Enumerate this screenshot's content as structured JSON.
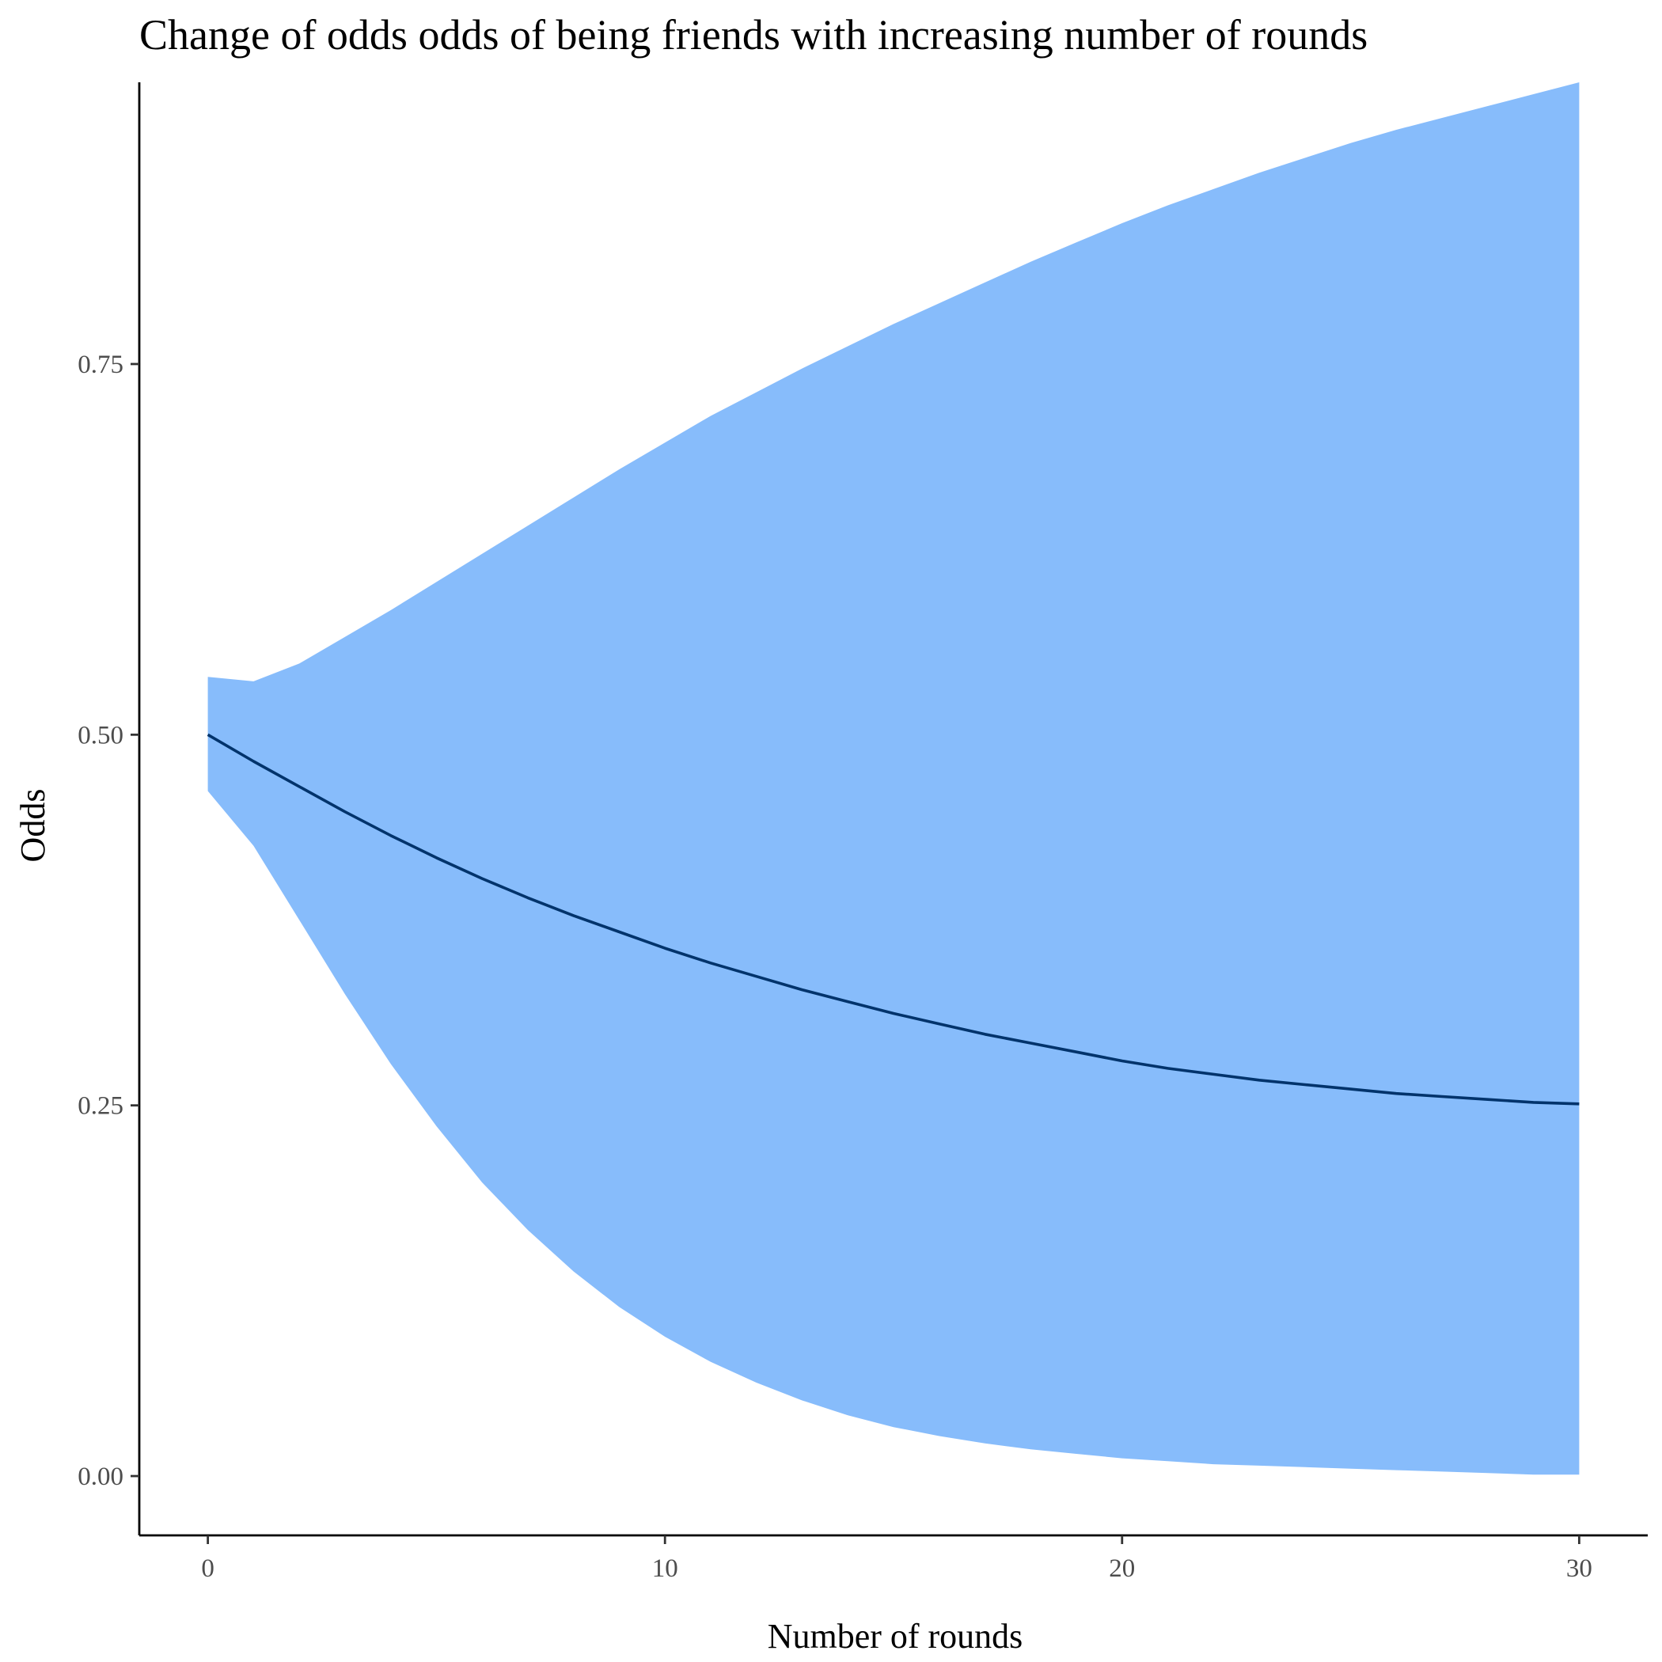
{
  "chart_data": {
    "type": "area",
    "title": "Change of odds odds of being friends with increasing number of rounds",
    "xlabel": "Number of rounds",
    "ylabel": "Odds",
    "xlim": [
      -1.5,
      31.5
    ],
    "ylim": [
      -0.04,
      0.94
    ],
    "x_ticks": [
      0,
      10,
      20,
      30
    ],
    "x_tick_labels": [
      "0",
      "10",
      "20",
      "30"
    ],
    "y_ticks": [
      0,
      0.25,
      0.5,
      0.75
    ],
    "y_tick_labels": [
      "0.00",
      "0.25",
      "0.50",
      "0.75"
    ],
    "grid": false,
    "legend": "none",
    "colors": {
      "ribbon": "#87bcfb",
      "line": "#00336b"
    },
    "series": [
      {
        "kind": "ribbon",
        "x": [
          0,
          1,
          2,
          3,
          4,
          5,
          6,
          7,
          8,
          9,
          10,
          11,
          12,
          13,
          14,
          15,
          16,
          17,
          18,
          19,
          20,
          21,
          22,
          23,
          24,
          25,
          26,
          27,
          28,
          29,
          30
        ],
        "lower": [
          0.462,
          0.425,
          0.375,
          0.325,
          0.278,
          0.236,
          0.198,
          0.166,
          0.138,
          0.114,
          0.094,
          0.077,
          0.063,
          0.051,
          0.041,
          0.033,
          0.027,
          0.022,
          0.018,
          0.015,
          0.012,
          0.01,
          0.008,
          0.007,
          0.006,
          0.005,
          0.004,
          0.003,
          0.002,
          0.001,
          0.001
        ],
        "upper": [
          0.539,
          0.536,
          0.548,
          0.566,
          0.584,
          0.603,
          0.622,
          0.641,
          0.66,
          0.679,
          0.697,
          0.715,
          0.731,
          0.747,
          0.762,
          0.777,
          0.791,
          0.805,
          0.819,
          0.832,
          0.845,
          0.857,
          0.868,
          0.879,
          0.889,
          0.899,
          0.908,
          0.916,
          0.924,
          0.932,
          0.94
        ]
      },
      {
        "kind": "line",
        "x": [
          0,
          1,
          2,
          3,
          4,
          5,
          6,
          7,
          8,
          9,
          10,
          11,
          12,
          13,
          14,
          15,
          16,
          17,
          18,
          19,
          20,
          21,
          22,
          23,
          24,
          25,
          26,
          27,
          28,
          29,
          30
        ],
        "y": [
          0.5,
          0.482,
          0.465,
          0.448,
          0.432,
          0.417,
          0.403,
          0.39,
          0.378,
          0.367,
          0.356,
          0.346,
          0.337,
          0.328,
          0.32,
          0.312,
          0.305,
          0.298,
          0.292,
          0.286,
          0.28,
          0.275,
          0.271,
          0.267,
          0.264,
          0.261,
          0.258,
          0.256,
          0.254,
          0.252,
          0.251
        ]
      }
    ]
  }
}
